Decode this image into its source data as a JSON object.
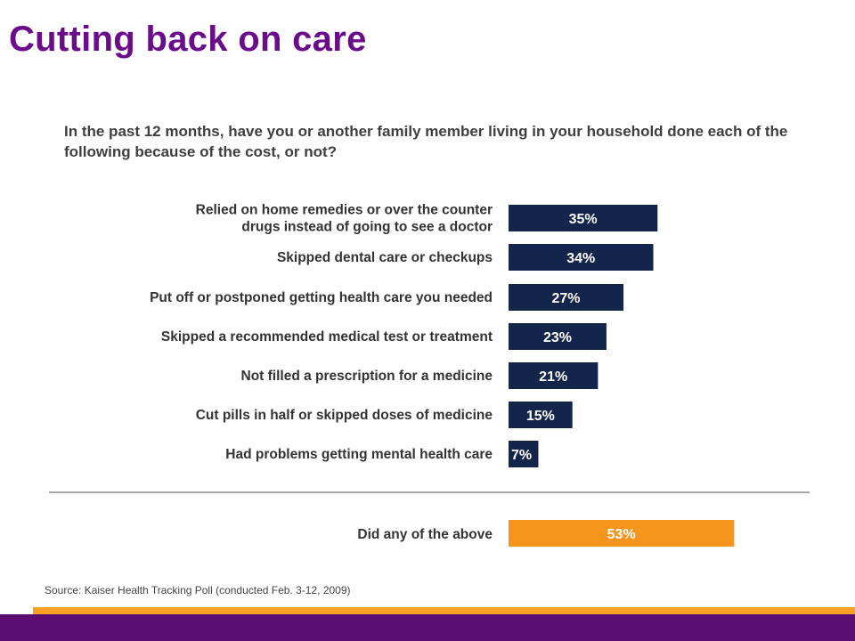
{
  "title": "Cutting back on care",
  "question": "In the past 12 months, have you or another family member living in your household done each of the following because of the cost, or not?",
  "source": "Source: Kaiser Health Tracking Poll (conducted Feb. 3-12, 2009)",
  "colors": {
    "title": "#6B0D8A",
    "bar": "#14254B",
    "summary_bar": "#F7941D",
    "footer_band": "#5B0E72",
    "footer_stripe": "#F7A023"
  },
  "chart_data": {
    "type": "bar",
    "orientation": "horizontal",
    "categories": [
      [
        "Relied on home remedies or over the counter",
        "drugs instead of going to see a doctor"
      ],
      [
        "Skipped dental care or checkups"
      ],
      [
        "Put off or postponed getting health care you needed"
      ],
      [
        "Skipped a recommended medical test or treatment"
      ],
      [
        "Not filled a prescription for a medicine"
      ],
      [
        "Cut pills in half or skipped doses of medicine"
      ],
      [
        "Had problems getting mental health care"
      ]
    ],
    "values": [
      35,
      34,
      27,
      23,
      21,
      15,
      7
    ],
    "value_labels": [
      "35%",
      "34%",
      "27%",
      "23%",
      "21%",
      "15%",
      "7%"
    ],
    "summary": {
      "category": "Did any of the above",
      "value": 53,
      "label": "53%"
    },
    "xlim": [
      0,
      100
    ],
    "grid": false,
    "legend": "none"
  }
}
